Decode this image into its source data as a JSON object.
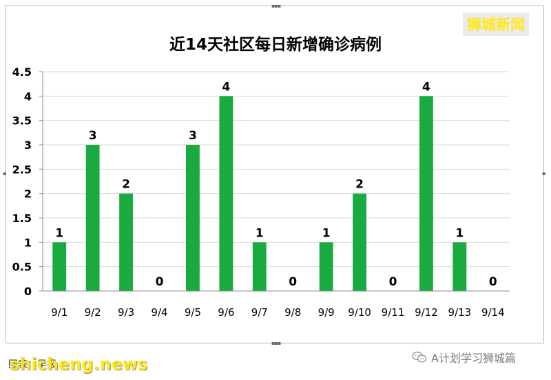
{
  "watermark": "狮城新闻",
  "footer": {
    "credit": "图表：早报",
    "site": "shicheng.news",
    "account": "A计划学习狮城篇",
    "account_icon": "wechat-icon"
  },
  "colors": {
    "bar": "#1aab40",
    "grid": "#d9d9d9",
    "axis": "#8c8c8c"
  },
  "chart_data": {
    "type": "bar",
    "title": "近14天社区每日新增确诊病例",
    "xlabel": "",
    "ylabel": "",
    "categories": [
      "9/1",
      "9/2",
      "9/3",
      "9/4",
      "9/5",
      "9/6",
      "9/7",
      "9/8",
      "9/9",
      "9/10",
      "9/11",
      "9/12",
      "9/13",
      "9/14"
    ],
    "values": [
      1,
      3,
      2,
      0,
      3,
      4,
      1,
      0,
      1,
      2,
      0,
      4,
      1,
      0
    ],
    "data_labels": [
      "1",
      "3",
      "2",
      "0",
      "3",
      "4",
      "1",
      "0",
      "1",
      "2",
      "0",
      "4",
      "1",
      "0"
    ],
    "ylim": [
      0,
      4.5
    ],
    "yticks": [
      "0",
      "0.5",
      "1",
      "1.5",
      "2",
      "2.5",
      "3",
      "3.5",
      "4",
      "4.5"
    ],
    "grid": true,
    "legend": "none"
  }
}
